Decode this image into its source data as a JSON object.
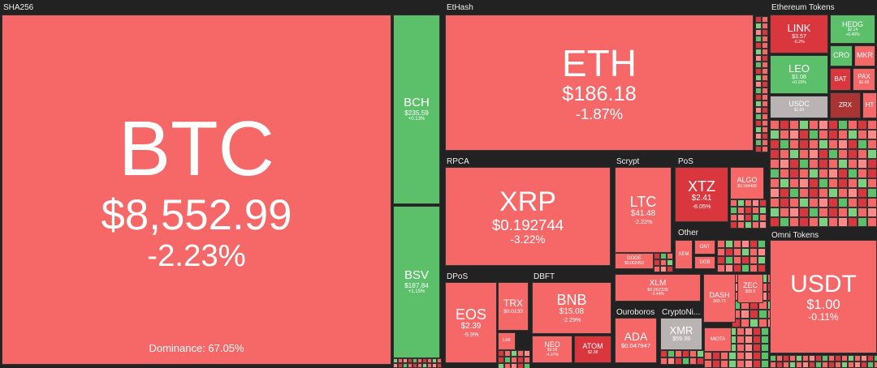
{
  "groups": [
    {
      "name": "SHA256",
      "tiles": [
        {
          "symbol": "BTC",
          "price": "$8,552.99",
          "change": "-2.23%",
          "note": "Dominance: 67.05%"
        },
        {
          "symbol": "BCH",
          "price": "$235.59",
          "change": "+0.13%"
        },
        {
          "symbol": "BSV",
          "price": "$187.84",
          "change": "+1.15%"
        }
      ]
    },
    {
      "name": "EtHash",
      "tiles": [
        {
          "symbol": "ETH",
          "price": "$186.18",
          "change": "-1.87%"
        }
      ]
    },
    {
      "name": "Ethereum Tokens",
      "tiles": [
        {
          "symbol": "LINK",
          "price": "$3.57",
          "change": "-6.2%"
        },
        {
          "symbol": "HEDG",
          "price": "$2.14",
          "change": "+0.40%"
        },
        {
          "symbol": "CRO"
        },
        {
          "symbol": "MKR"
        },
        {
          "symbol": "LEO",
          "price": "$1.08",
          "change": "+0.15%"
        },
        {
          "symbol": "BAT"
        },
        {
          "symbol": "PAX",
          "price": "$1.00"
        },
        {
          "symbol": "USDC",
          "price": "$1.00"
        },
        {
          "symbol": "ZRX"
        },
        {
          "symbol": "HT"
        }
      ]
    },
    {
      "name": "RPCA",
      "tiles": [
        {
          "symbol": "XRP",
          "price": "$0.192744",
          "change": "-3.22%"
        }
      ]
    },
    {
      "name": "Scrypt",
      "tiles": [
        {
          "symbol": "LTC",
          "price": "$41.48",
          "change": "-2.22%"
        },
        {
          "symbol": "DOGE",
          "price": "$0.002453"
        }
      ]
    },
    {
      "name": "PoS",
      "tiles": [
        {
          "symbol": "XTZ",
          "price": "$2.41",
          "change": "-6.05%"
        },
        {
          "symbol": "ALGO",
          "price": "$0.184499"
        }
      ]
    },
    {
      "name": "Other",
      "tiles": [
        {
          "symbol": "XLM",
          "price": "$0.062335",
          "change": "-3.44%"
        },
        {
          "symbol": "DASH",
          "price": "$69.73"
        },
        {
          "symbol": "ZEC",
          "price": "$39.6"
        },
        {
          "symbol": "XEM"
        },
        {
          "symbol": "ONT"
        },
        {
          "symbol": "DGB"
        },
        {
          "symbol": "MIOTA"
        }
      ]
    },
    {
      "name": "DPoS",
      "tiles": [
        {
          "symbol": "EOS",
          "price": "$2.39",
          "change": "-5.9%"
        },
        {
          "symbol": "TRX",
          "price": "$0.0133"
        },
        {
          "symbol": "LSK"
        }
      ]
    },
    {
      "name": "DBFT",
      "tiles": [
        {
          "symbol": "BNB",
          "price": "$15.08",
          "change": "-2.29%"
        },
        {
          "symbol": "NEO",
          "price": "$9.58",
          "change": "-4.37%"
        },
        {
          "symbol": "ATOM",
          "price": "$2.38"
        }
      ]
    },
    {
      "name": "Ouroboros",
      "tiles": [
        {
          "symbol": "ADA",
          "price": "$0.047947"
        }
      ]
    },
    {
      "name": "CryptoNi...",
      "tiles": [
        {
          "symbol": "XMR",
          "price": "$59.39"
        }
      ]
    },
    {
      "name": "Omni Tokens",
      "tiles": [
        {
          "symbol": "USDT",
          "price": "$1.00",
          "change": "-0.11%"
        }
      ]
    }
  ]
}
